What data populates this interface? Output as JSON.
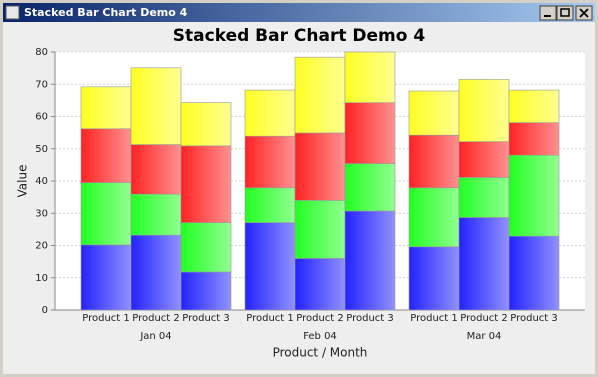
{
  "window": {
    "title": "Stacked Bar Chart Demo 4"
  },
  "chart_data": {
    "type": "stacked-bar",
    "title": "Stacked Bar Chart Demo 4",
    "x_label": "Product / Month",
    "y_label": "Value",
    "groups": [
      {
        "label": "Jan 04",
        "categories": [
          "Product 1",
          "Product 2",
          "Product 3"
        ]
      },
      {
        "label": "Feb 04",
        "categories": [
          "Product 1",
          "Product 2",
          "Product 3"
        ]
      },
      {
        "label": "Mar 04",
        "categories": [
          "Product 1",
          "Product 2",
          "Product 3"
        ]
      }
    ],
    "series": [
      {
        "color": "#2222ff",
        "values": [
          20.2,
          23.2,
          11.8,
          27.1,
          16.0,
          30.7,
          19.6,
          28.7,
          22.9
        ]
      },
      {
        "color": "#22ff22",
        "values": [
          19.3,
          12.7,
          15.3,
          10.8,
          18.0,
          14.7,
          18.3,
          12.4,
          25.1
        ]
      },
      {
        "color": "#ff2222",
        "values": [
          16.7,
          15.4,
          23.8,
          16.0,
          20.9,
          18.9,
          16.3,
          11.1,
          10.1
        ]
      },
      {
        "color": "#ffff22",
        "values": [
          13.0,
          23.8,
          13.4,
          14.3,
          23.5,
          15.7,
          13.7,
          19.3,
          10.1
        ]
      }
    ],
    "ylim": [
      0,
      80
    ],
    "yticks": [
      0,
      10,
      20,
      30,
      40,
      50,
      60,
      70,
      80
    ],
    "grid": true
  }
}
